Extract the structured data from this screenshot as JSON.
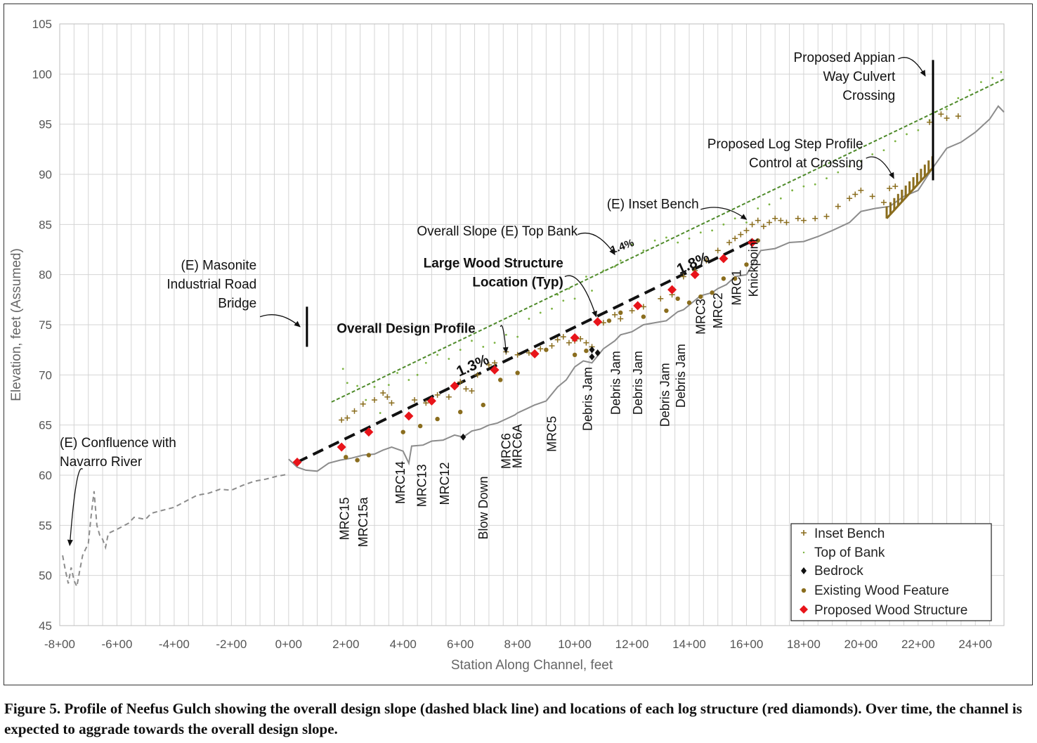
{
  "chart_data": {
    "type": "scatter",
    "title": "",
    "xlabel": "Station Along Channel, feet",
    "ylabel": "Elevation, feet (Assumed)",
    "xlim": [
      -800,
      2500
    ],
    "ylim": [
      45,
      105
    ],
    "x_tick_values": [
      -800,
      -600,
      -400,
      -200,
      0,
      200,
      400,
      600,
      800,
      1000,
      1200,
      1400,
      1600,
      1800,
      2000,
      2200,
      2400
    ],
    "x_tick_labels": [
      "-8+00",
      "-6+00",
      "-4+00",
      "-2+00",
      "0+00",
      "2+00",
      "4+00",
      "6+00",
      "8+00",
      "10+00",
      "12+00",
      "14+00",
      "16+00",
      "18+00",
      "20+00",
      "22+00",
      "24+00"
    ],
    "y_tick_values": [
      45,
      50,
      55,
      60,
      65,
      70,
      75,
      80,
      85,
      90,
      95,
      100,
      105
    ],
    "y_tick_labels": [
      "45",
      "50",
      "55",
      "60",
      "65",
      "70",
      "75",
      "80",
      "85",
      "90",
      "95",
      "100",
      "105"
    ],
    "grid": true,
    "legend_position": "bottom-right",
    "colors": {
      "channel": "#8c8c8c",
      "design": "#111111",
      "top_bank": "#7cb342",
      "top_bank_trend": "#4e8a2a",
      "inset_bench": "#8a6d1e",
      "existing_wood": "#8a6d1e",
      "proposed_wood": "#e8141a",
      "bedrock": "#111111"
    },
    "legend": [
      {
        "key": "inset_bench",
        "label": "Inset Bench"
      },
      {
        "key": "top_bank",
        "label": "Top of Bank"
      },
      {
        "key": "bedrock",
        "label": "Bedrock"
      },
      {
        "key": "existing_wood",
        "label": "Existing Wood Feature"
      },
      {
        "key": "proposed_wood",
        "label": "Proposed Wood Structure"
      }
    ],
    "channel_dashed": [
      [
        -790,
        52
      ],
      [
        -780,
        50.5
      ],
      [
        -770,
        49.2
      ],
      [
        -760,
        50.8
      ],
      [
        -750,
        49.5
      ],
      [
        -740,
        48.9
      ],
      [
        -730,
        50.5
      ],
      [
        -720,
        52
      ],
      [
        -700,
        53.2
      ],
      [
        -690,
        56
      ],
      [
        -680,
        58.4
      ],
      [
        -670,
        55
      ],
      [
        -660,
        54
      ],
      [
        -650,
        53.6
      ],
      [
        -640,
        52.8
      ],
      [
        -630,
        54.2
      ],
      [
        -600,
        54.6
      ],
      [
        -560,
        55.2
      ],
      [
        -540,
        55.8
      ],
      [
        -500,
        55.6
      ],
      [
        -480,
        56.2
      ],
      [
        -440,
        56.5
      ],
      [
        -400,
        56.8
      ],
      [
        -360,
        57.4
      ],
      [
        -320,
        58
      ],
      [
        -280,
        58.2
      ],
      [
        -240,
        58.6
      ],
      [
        -200,
        58.5
      ],
      [
        -160,
        59
      ],
      [
        -120,
        59.4
      ],
      [
        -80,
        59.6
      ],
      [
        -40,
        59.9
      ],
      [
        0,
        60.1
      ]
    ],
    "channel_solid": [
      [
        0,
        61.6
      ],
      [
        30,
        60.8
      ],
      [
        60,
        60.5
      ],
      [
        100,
        60.4
      ],
      [
        140,
        61.2
      ],
      [
        180,
        61.5
      ],
      [
        220,
        61.7
      ],
      [
        260,
        62
      ],
      [
        300,
        62.1
      ],
      [
        330,
        62.5
      ],
      [
        360,
        62.8
      ],
      [
        400,
        62.4
      ],
      [
        420,
        61.2
      ],
      [
        430,
        62.9
      ],
      [
        470,
        63
      ],
      [
        500,
        63.4
      ],
      [
        540,
        63.5
      ],
      [
        580,
        64
      ],
      [
        610,
        63.8
      ],
      [
        640,
        64.4
      ],
      [
        670,
        64.6
      ],
      [
        700,
        65
      ],
      [
        730,
        65.2
      ],
      [
        760,
        65.6
      ],
      [
        790,
        66
      ],
      [
        800,
        66.2
      ],
      [
        830,
        66.6
      ],
      [
        860,
        67
      ],
      [
        900,
        67.4
      ],
      [
        940,
        68.8
      ],
      [
        970,
        69.5
      ],
      [
        1000,
        70.8
      ],
      [
        1030,
        71.4
      ],
      [
        1060,
        71.2
      ],
      [
        1100,
        72.6
      ],
      [
        1140,
        73.4
      ],
      [
        1160,
        74
      ],
      [
        1200,
        74.3
      ],
      [
        1240,
        75
      ],
      [
        1280,
        75.2
      ],
      [
        1320,
        75.4
      ],
      [
        1360,
        76.3
      ],
      [
        1380,
        76.5
      ],
      [
        1410,
        77.2
      ],
      [
        1440,
        77.9
      ],
      [
        1480,
        78.2
      ],
      [
        1500,
        78.6
      ],
      [
        1530,
        79
      ],
      [
        1560,
        79.8
      ],
      [
        1600,
        80
      ],
      [
        1650,
        82.4
      ],
      [
        1700,
        82.6
      ],
      [
        1750,
        83.2
      ],
      [
        1800,
        83.3
      ],
      [
        1850,
        83.8
      ],
      [
        1900,
        84.4
      ],
      [
        1960,
        85.2
      ],
      [
        2000,
        86.3
      ],
      [
        2050,
        86.6
      ],
      [
        2100,
        86.8
      ],
      [
        2150,
        87.8
      ],
      [
        2200,
        88.4
      ],
      [
        2250,
        90.6
      ],
      [
        2300,
        92.6
      ],
      [
        2350,
        93.2
      ],
      [
        2400,
        94.2
      ],
      [
        2450,
        95.5
      ],
      [
        2480,
        96.8
      ],
      [
        2500,
        96.2
      ]
    ],
    "design_profile": [
      [
        30,
        61.3
      ],
      [
        1630,
        83.5
      ]
    ],
    "top_bank_trend": [
      [
        150,
        67.3
      ],
      [
        2500,
        99.5
      ]
    ],
    "top_bank": [
      [
        190,
        70.6
      ],
      [
        205,
        69.2
      ],
      [
        240,
        68.9
      ],
      [
        270,
        67.5
      ],
      [
        300,
        68.8
      ],
      [
        320,
        66.2
      ],
      [
        350,
        69
      ],
      [
        380,
        70.2
      ],
      [
        420,
        69.5
      ],
      [
        450,
        70
      ],
      [
        480,
        71.2
      ],
      [
        520,
        72
      ],
      [
        560,
        71.6
      ],
      [
        600,
        72.5
      ],
      [
        640,
        73.4
      ],
      [
        680,
        72.8
      ],
      [
        720,
        73.2
      ],
      [
        760,
        74
      ],
      [
        800,
        73.8
      ],
      [
        840,
        75.6
      ],
      [
        880,
        76.2
      ],
      [
        920,
        76.6
      ],
      [
        940,
        78
      ],
      [
        960,
        77.4
      ],
      [
        980,
        78.6
      ],
      [
        1000,
        77.6
      ],
      [
        1040,
        79.8
      ],
      [
        1060,
        78.4
      ],
      [
        1100,
        80.4
      ],
      [
        1140,
        80.8
      ],
      [
        1160,
        81.4
      ],
      [
        1200,
        83
      ],
      [
        1240,
        82.4
      ],
      [
        1280,
        83.4
      ],
      [
        1320,
        83.7
      ],
      [
        1360,
        83.2
      ],
      [
        1400,
        83.6
      ],
      [
        1440,
        84.2
      ],
      [
        1480,
        84.4
      ],
      [
        1520,
        85
      ],
      [
        1560,
        85.6
      ],
      [
        1600,
        85.2
      ],
      [
        1640,
        86.6
      ],
      [
        1680,
        87
      ],
      [
        1720,
        87.6
      ],
      [
        1760,
        88.4
      ],
      [
        1800,
        88.8
      ],
      [
        1840,
        89
      ],
      [
        1880,
        89.6
      ],
      [
        1920,
        90.2
      ],
      [
        1960,
        90.8
      ],
      [
        2000,
        91.3
      ],
      [
        2040,
        92
      ],
      [
        2080,
        92.4
      ],
      [
        2120,
        93.3
      ],
      [
        2160,
        94
      ],
      [
        2200,
        94.4
      ],
      [
        2240,
        95.4
      ],
      [
        2260,
        96.2
      ],
      [
        2300,
        96.5
      ],
      [
        2340,
        97.6
      ],
      [
        2380,
        98.4
      ],
      [
        2420,
        99.2
      ],
      [
        2460,
        99.6
      ],
      [
        2490,
        100.2
      ]
    ],
    "inset_bench": [
      [
        185,
        65.5
      ],
      [
        205,
        65.7
      ],
      [
        230,
        66.4
      ],
      [
        260,
        67.1
      ],
      [
        300,
        67.5
      ],
      [
        330,
        68.2
      ],
      [
        345,
        67.8
      ],
      [
        360,
        67.2
      ],
      [
        440,
        67.5
      ],
      [
        480,
        67.2
      ],
      [
        520,
        68
      ],
      [
        560,
        67.8
      ],
      [
        600,
        69.3
      ],
      [
        620,
        68.6
      ],
      [
        640,
        68.4
      ],
      [
        660,
        70
      ],
      [
        700,
        71
      ],
      [
        720,
        71.2
      ],
      [
        760,
        72.3
      ],
      [
        800,
        72
      ],
      [
        840,
        72.2
      ],
      [
        880,
        72.6
      ],
      [
        920,
        72.9
      ],
      [
        940,
        73.5
      ],
      [
        960,
        73.8
      ],
      [
        980,
        73.2
      ],
      [
        1000,
        73.4
      ],
      [
        1020,
        73.6
      ],
      [
        1040,
        73.2
      ],
      [
        1060,
        72.8
      ],
      [
        1100,
        75.2
      ],
      [
        1140,
        76
      ],
      [
        1160,
        75.6
      ],
      [
        1200,
        76.4
      ],
      [
        1240,
        76.8
      ],
      [
        1300,
        77.6
      ],
      [
        1340,
        78
      ],
      [
        1380,
        79.8
      ],
      [
        1420,
        80.4
      ],
      [
        1460,
        81.4
      ],
      [
        1500,
        82.4
      ],
      [
        1540,
        83.2
      ],
      [
        1560,
        83.6
      ],
      [
        1580,
        84
      ],
      [
        1600,
        84.4
      ],
      [
        1620,
        85
      ],
      [
        1640,
        85.4
      ],
      [
        1660,
        84.8
      ],
      [
        1680,
        85.2
      ],
      [
        1700,
        85.6
      ],
      [
        1720,
        85.4
      ],
      [
        1740,
        85.2
      ],
      [
        1780,
        85.6
      ],
      [
        1800,
        85.4
      ],
      [
        1840,
        85.6
      ],
      [
        1880,
        85.8
      ],
      [
        1920,
        86.8
      ],
      [
        1960,
        87.6
      ],
      [
        1980,
        88
      ],
      [
        2000,
        88.4
      ],
      [
        2040,
        87.8
      ],
      [
        2080,
        87.2
      ],
      [
        2100,
        88.6
      ],
      [
        2120,
        88.8
      ],
      [
        2240,
        95.2
      ],
      [
        2280,
        96
      ],
      [
        2300,
        95.6
      ],
      [
        2340,
        95.8
      ]
    ],
    "existing_wood": [
      [
        200,
        61.8
      ],
      [
        240,
        61.5
      ],
      [
        280,
        62
      ],
      [
        400,
        64.3
      ],
      [
        460,
        64.9
      ],
      [
        520,
        65.6
      ],
      [
        600,
        66.3
      ],
      [
        680,
        67
      ],
      [
        740,
        69.5
      ],
      [
        800,
        70.2
      ],
      [
        900,
        72.5
      ],
      [
        1000,
        72
      ],
      [
        1040,
        72.4
      ],
      [
        1080,
        72.2
      ],
      [
        1120,
        75.4
      ],
      [
        1160,
        76.2
      ],
      [
        1240,
        75.8
      ],
      [
        1320,
        76.4
      ],
      [
        1360,
        77.6
      ],
      [
        1400,
        77.2
      ],
      [
        1440,
        77.8
      ],
      [
        1480,
        78.2
      ],
      [
        1520,
        79.6
      ],
      [
        1560,
        79.6
      ],
      [
        1600,
        81
      ],
      [
        1640,
        83.4
      ]
    ],
    "proposed_wood": [
      [
        30,
        61.3
      ],
      [
        185,
        62.8
      ],
      [
        280,
        64.3
      ],
      [
        420,
        65.9
      ],
      [
        500,
        67.4
      ],
      [
        580,
        68.9
      ],
      [
        720,
        70.5
      ],
      [
        860,
        72.1
      ],
      [
        1000,
        73.7
      ],
      [
        1080,
        75.3
      ],
      [
        1220,
        76.9
      ],
      [
        1340,
        78.5
      ],
      [
        1420,
        80
      ],
      [
        1520,
        81.6
      ],
      [
        1620,
        83.2
      ]
    ],
    "bedrock": [
      [
        610,
        63.8
      ],
      [
        1060,
        71.8
      ],
      [
        1080,
        72.2
      ],
      [
        1060,
        72.5
      ]
    ],
    "log_step": {
      "x_start": 2090,
      "x_end": 2250,
      "y_start": 85.6,
      "y_end": 90.6,
      "step_height": 1.2
    },
    "bridge_marker": {
      "x": 64,
      "y_low": 72.8,
      "y_high": 76.8
    },
    "culvert_marker": {
      "x": 2252,
      "y_low": 89.4,
      "y_high": 101.4
    },
    "annotations": [
      {
        "key": "confluence",
        "lines": [
          "(E) Confluence with",
          "Navarro River"
        ],
        "anchor": "start",
        "x": -800,
        "y": 62.8
      },
      {
        "key": "masonite",
        "lines": [
          "(E) Masonite",
          "Industrial Road",
          "Bridge"
        ],
        "anchor": "end",
        "x": -112,
        "y": 80.5
      },
      {
        "key": "design_profile",
        "lines": [
          "Overall Design Profile"
        ],
        "anchor": "start",
        "x": 168,
        "y": 74.2,
        "bold": true
      },
      {
        "key": "large_wood",
        "lines": [
          "Large Wood Structure",
          "Location (Typ)"
        ],
        "anchor": "end",
        "x": 960,
        "y": 80.7,
        "bold": true
      },
      {
        "key": "top_bank_slope",
        "lines": [
          "Overall Slope (E) Top Bank"
        ],
        "anchor": "end",
        "x": 1010,
        "y": 83.9
      },
      {
        "key": "inset_bench",
        "lines": [
          "(E) Inset Bench"
        ],
        "anchor": "start",
        "x": 1112,
        "y": 86.6
      },
      {
        "key": "log_step",
        "lines": [
          "Proposed Log Step Profile",
          "Control at  Crossing"
        ],
        "anchor": "end",
        "x": 2008,
        "y": 92.6
      },
      {
        "key": "appian",
        "lines": [
          "Proposed Appian",
          "Way Culvert",
          "Crossing"
        ],
        "anchor": "end",
        "x": 2120,
        "y": 101.2
      }
    ],
    "slope_labels": [
      {
        "text": "1.3%",
        "x": 650,
        "y": 70.5,
        "angle": -24,
        "size": 21
      },
      {
        "text": "1.8%",
        "x": 1420,
        "y": 80.7,
        "angle": -24,
        "size": 21
      },
      {
        "text": "1.4%",
        "x": 1170,
        "y": 82.5,
        "angle": -20,
        "size": 15
      }
    ],
    "feature_labels": [
      {
        "text": "MRC15",
        "x": 210,
        "y": 57.8
      },
      {
        "text": "MRC15a",
        "x": 275,
        "y": 57.8
      },
      {
        "text": "MRC14",
        "x": 405,
        "y": 61.4
      },
      {
        "text": "MRC13",
        "x": 480,
        "y": 61.1
      },
      {
        "text": "MRC12",
        "x": 560,
        "y": 61.3
      },
      {
        "text": "Blow Down",
        "x": 695,
        "y": 59.9
      },
      {
        "text": "MRC6",
        "x": 775,
        "y": 64.2
      },
      {
        "text": "MRC6A",
        "x": 815,
        "y": 65.1
      },
      {
        "text": "MRC5",
        "x": 935,
        "y": 65.9
      },
      {
        "text": "Debris Jam",
        "x": 1060,
        "y": 70.8
      },
      {
        "text": "Debris Jam",
        "x": 1158,
        "y": 72.4
      },
      {
        "text": "Debris Jam",
        "x": 1235,
        "y": 72.4
      },
      {
        "text": "Debris Jam",
        "x": 1330,
        "y": 71.2
      },
      {
        "text": "Debris Jam",
        "x": 1385,
        "y": 73.1
      },
      {
        "text": "MRC3",
        "x": 1455,
        "y": 77.6
      },
      {
        "text": "MRC2",
        "x": 1515,
        "y": 78.2
      },
      {
        "text": "MRC1",
        "x": 1580,
        "y": 80.5
      },
      {
        "text": "Knickpoint",
        "x": 1640,
        "y": 83.6
      }
    ]
  },
  "caption": "Figure 5. Profile of Neefus Gulch showing the overall design slope (dashed black line) and locations of each log structure (red diamonds).  Over time, the channel is expected to aggrade towards the overall design slope."
}
